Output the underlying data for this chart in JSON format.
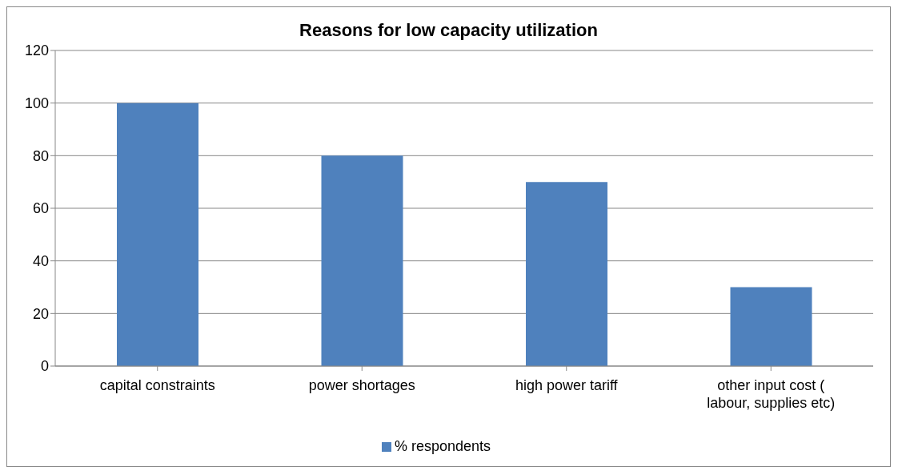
{
  "chart_data": {
    "type": "bar",
    "title": "Reasons for low capacity utilization",
    "categories": [
      "capital constraints",
      "power shortages",
      "high power tariff",
      "other input cost ( labour, supplies etc)"
    ],
    "series": [
      {
        "name": "% respondents",
        "color": "#4f81bd",
        "values": [
          100,
          80,
          70,
          30
        ]
      }
    ],
    "ylim": [
      0,
      120
    ],
    "yticks": [
      0,
      20,
      40,
      60,
      80,
      100,
      120
    ],
    "grid": "y",
    "legend": "bottom"
  }
}
